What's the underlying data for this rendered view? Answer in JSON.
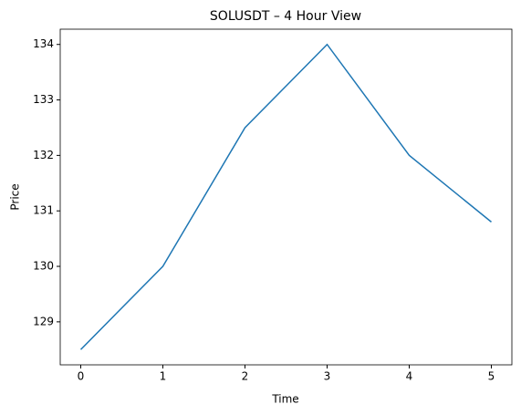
{
  "chart_data": {
    "type": "line",
    "title": "SOLUSDT – 4 Hour View",
    "x_label": "Time",
    "y_label": "Price",
    "x": [
      0,
      1,
      2,
      3,
      4,
      5
    ],
    "series": [
      {
        "color": "#1f77b4",
        "values": [
          128.5,
          130,
          132.5,
          134,
          132,
          130.8
        ]
      }
    ],
    "xlim": [
      -0.25,
      5.25
    ],
    "xticks": [
      0,
      1,
      2,
      3,
      4,
      5
    ],
    "ylim": [
      128.225,
      134.275
    ],
    "yticks": [
      129,
      130,
      131,
      132,
      133,
      134
    ]
  }
}
